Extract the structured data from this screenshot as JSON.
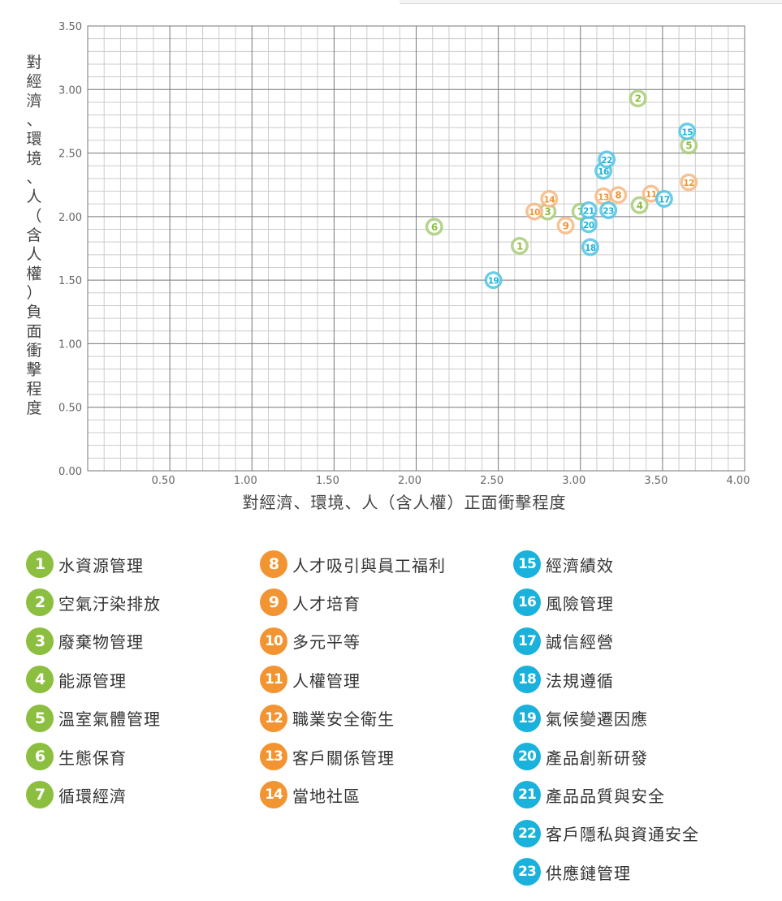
{
  "colors": {
    "environment": "#8cbf3f",
    "social": "#f39433",
    "governance": "#1ab2dc",
    "environment_bubble": "#a9cc7a",
    "social_bubble": "#f6b884",
    "governance_bubble": "#54c3e3",
    "grid_major": "#777777",
    "grid_minor": "#cccccc"
  },
  "chart_data": {
    "type": "scatter",
    "xlabel": "對經濟、環境、人（含人權）正面衝擊程度",
    "ylabel": "對經濟、環境、人（含人權）負面衝擊程度",
    "xlim": [
      0,
      4
    ],
    "ylim": [
      0,
      3.5
    ],
    "xticks": [
      "0.50",
      "1.00",
      "1.50",
      "2.00",
      "2.50",
      "3.00",
      "3.50",
      "4.00"
    ],
    "yticks": [
      "3.50",
      "3.00",
      "2.50",
      "2.00",
      "1.50",
      "1.00",
      "0.50",
      "0.00"
    ],
    "grid": true,
    "points": [
      {
        "id": "1",
        "x": 2.63,
        "y": 1.77,
        "group": "environment"
      },
      {
        "id": "2",
        "x": 3.35,
        "y": 2.93,
        "group": "environment"
      },
      {
        "id": "3",
        "x": 2.8,
        "y": 2.04,
        "group": "environment"
      },
      {
        "id": "4",
        "x": 3.36,
        "y": 2.09,
        "group": "environment"
      },
      {
        "id": "5",
        "x": 3.66,
        "y": 2.56,
        "group": "environment"
      },
      {
        "id": "6",
        "x": 2.11,
        "y": 1.92,
        "group": "environment"
      },
      {
        "id": "7",
        "x": 3.0,
        "y": 2.04,
        "group": "environment"
      },
      {
        "id": "8",
        "x": 3.23,
        "y": 2.17,
        "group": "social"
      },
      {
        "id": "9",
        "x": 2.91,
        "y": 1.93,
        "group": "social"
      },
      {
        "id": "10",
        "x": 2.72,
        "y": 2.04,
        "group": "social"
      },
      {
        "id": "11",
        "x": 3.43,
        "y": 2.18,
        "group": "social"
      },
      {
        "id": "12",
        "x": 3.66,
        "y": 2.27,
        "group": "social"
      },
      {
        "id": "13",
        "x": 3.14,
        "y": 2.16,
        "group": "social"
      },
      {
        "id": "14",
        "x": 2.81,
        "y": 2.14,
        "group": "social"
      },
      {
        "id": "15",
        "x": 3.65,
        "y": 2.67,
        "group": "governance"
      },
      {
        "id": "16",
        "x": 3.14,
        "y": 2.36,
        "group": "governance"
      },
      {
        "id": "17",
        "x": 3.51,
        "y": 2.14,
        "group": "governance"
      },
      {
        "id": "18",
        "x": 3.06,
        "y": 1.76,
        "group": "governance"
      },
      {
        "id": "19",
        "x": 2.47,
        "y": 1.5,
        "group": "governance"
      },
      {
        "id": "20",
        "x": 3.05,
        "y": 1.94,
        "group": "governance"
      },
      {
        "id": "21",
        "x": 3.05,
        "y": 2.05,
        "group": "governance"
      },
      {
        "id": "22",
        "x": 3.16,
        "y": 2.45,
        "group": "governance"
      },
      {
        "id": "23",
        "x": 3.17,
        "y": 2.05,
        "group": "governance"
      }
    ]
  },
  "legend": {
    "columns": [
      [
        {
          "num": "1",
          "label": "水資源管理",
          "group": "environment"
        },
        {
          "num": "2",
          "label": "空氣汙染排放",
          "group": "environment"
        },
        {
          "num": "3",
          "label": "廢棄物管理",
          "group": "environment"
        },
        {
          "num": "4",
          "label": "能源管理",
          "group": "environment"
        },
        {
          "num": "5",
          "label": "溫室氣體管理",
          "group": "environment"
        },
        {
          "num": "6",
          "label": "生態保育",
          "group": "environment"
        },
        {
          "num": "7",
          "label": "循環經濟",
          "group": "environment"
        }
      ],
      [
        {
          "num": "8",
          "label": "人才吸引與員工福利",
          "group": "social"
        },
        {
          "num": "9",
          "label": "人才培育",
          "group": "social"
        },
        {
          "num": "10",
          "label": "多元平等",
          "group": "social"
        },
        {
          "num": "11",
          "label": "人權管理",
          "group": "social"
        },
        {
          "num": "12",
          "label": "職業安全衛生",
          "group": "social"
        },
        {
          "num": "13",
          "label": "客戶關係管理",
          "group": "social"
        },
        {
          "num": "14",
          "label": "當地社區",
          "group": "social"
        }
      ],
      [
        {
          "num": "15",
          "label": "經濟績效",
          "group": "governance"
        },
        {
          "num": "16",
          "label": "風險管理",
          "group": "governance"
        },
        {
          "num": "17",
          "label": "誠信經營",
          "group": "governance"
        },
        {
          "num": "18",
          "label": "法規遵循",
          "group": "governance"
        },
        {
          "num": "19",
          "label": "氣候變遷因應",
          "group": "governance"
        },
        {
          "num": "20",
          "label": "產品創新研發",
          "group": "governance"
        },
        {
          "num": "21",
          "label": "產品品質與安全",
          "group": "governance"
        },
        {
          "num": "22",
          "label": "客戶隱私與資通安全",
          "group": "governance"
        },
        {
          "num": "23",
          "label": "供應鏈管理",
          "group": "governance"
        }
      ]
    ]
  }
}
